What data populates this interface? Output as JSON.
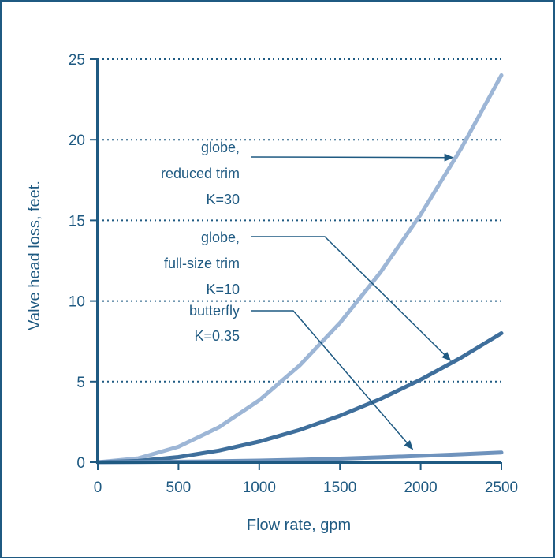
{
  "chart_data": {
    "type": "line",
    "xlabel": "Flow rate, gpm",
    "ylabel": "Valve head loss, feet.",
    "xlim": [
      0,
      2500
    ],
    "ylim": [
      0,
      25
    ],
    "x_ticks": [
      "0",
      "500",
      "1000",
      "1500",
      "2000",
      "2500"
    ],
    "y_ticks": [
      "0",
      "5",
      "10",
      "15",
      "20",
      "25"
    ],
    "grid": "horizontal dotted",
    "series": [
      {
        "key": "globe_reduced",
        "label_lines": [
          "globe,",
          "reduced trim",
          "K=30"
        ],
        "color": "#9db6d6",
        "x": [
          0,
          250,
          500,
          750,
          1000,
          1250,
          1500,
          1750,
          2000,
          2250,
          2500
        ],
        "y": [
          0,
          0.24,
          0.96,
          2.16,
          3.84,
          6.0,
          8.64,
          11.76,
          15.36,
          19.44,
          24.0
        ],
        "arrow_to": [
          2200,
          18.9
        ]
      },
      {
        "key": "globe_full",
        "label_lines": [
          "globe,",
          "full-size trim",
          "K=10"
        ],
        "color": "#3f6f9c",
        "x": [
          0,
          250,
          500,
          750,
          1000,
          1250,
          1500,
          1750,
          2000,
          2250,
          2500
        ],
        "y": [
          0,
          0.08,
          0.32,
          0.72,
          1.28,
          2.0,
          2.88,
          3.92,
          5.12,
          6.48,
          8.0
        ],
        "arrow_to": [
          2185,
          6.3
        ]
      },
      {
        "key": "butterfly",
        "label_lines": [
          "butterfly",
          "K=0.35"
        ],
        "color": "#6f93bd",
        "x": [
          0,
          250,
          500,
          750,
          1000,
          1250,
          1500,
          1750,
          2000,
          2250,
          2500
        ],
        "y": [
          0,
          0.01,
          0.03,
          0.06,
          0.1,
          0.15,
          0.22,
          0.3,
          0.39,
          0.49,
          0.6
        ],
        "arrow_to": [
          1950,
          0.8
        ]
      }
    ]
  },
  "colors": {
    "axis": "#1f5a82",
    "grid": "#1f5a82",
    "arrow": "#1f5a82"
  }
}
